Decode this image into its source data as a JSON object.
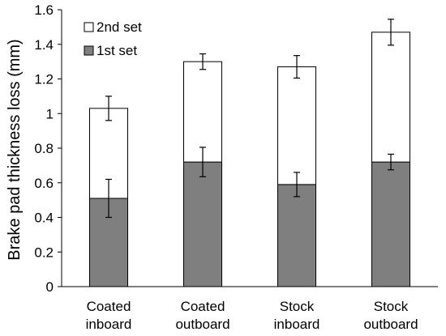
{
  "chart_data": {
    "type": "bar",
    "stacked": true,
    "ylabel": "Brake pad thickness loss (mm)",
    "xlabel": "",
    "ylim": [
      0,
      1.6
    ],
    "yticks": [
      0,
      0.2,
      0.4,
      0.6,
      0.8,
      1,
      1.2,
      1.4,
      1.6
    ],
    "ytick_labels": [
      "0",
      "0.2",
      "0.4",
      "0.6",
      "0.8",
      "1",
      "1.2",
      "1.4",
      "1.6"
    ],
    "grid": false,
    "legend_position": "top-left",
    "categories": [
      [
        "Coated",
        "inboard"
      ],
      [
        "Coated",
        "outboard"
      ],
      [
        "Stock",
        "inboard"
      ],
      [
        "Stock",
        "outboard"
      ]
    ],
    "series": [
      {
        "name": "1st set",
        "color": "#7f7f7f",
        "values": [
          0.51,
          0.72,
          0.59,
          0.72
        ],
        "error": [
          0.11,
          0.085,
          0.07,
          0.045
        ]
      },
      {
        "name": "2nd set",
        "color": "#ffffff",
        "values": [
          0.52,
          0.58,
          0.68,
          0.75
        ],
        "error": [
          0.07,
          0.045,
          0.065,
          0.075
        ]
      }
    ],
    "legend_order": [
      "2nd set",
      "1st set"
    ]
  }
}
